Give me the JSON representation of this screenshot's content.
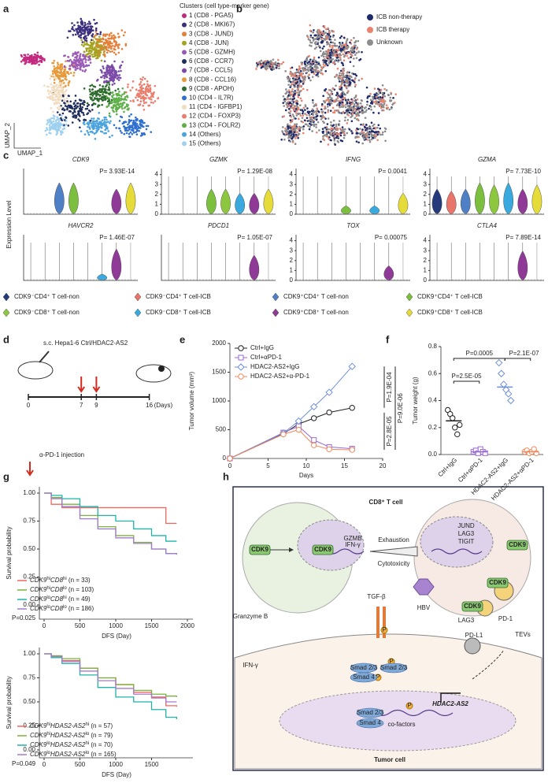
{
  "panel_labels": [
    "a",
    "b",
    "c",
    "d",
    "e",
    "f",
    "g",
    "h"
  ],
  "umap_clusters": {
    "title": "Clusters (cell type-marker gene)",
    "x_label": "UMAP_1",
    "y_label": "UMAP_2",
    "clusters": [
      {
        "label": "1 (CD8 - PGA5)",
        "color": "#c2297f"
      },
      {
        "label": "2 (CD8 - MKI67)",
        "color": "#3b2f7e"
      },
      {
        "label": "3 (CD8 - JUND)",
        "color": "#e5803a"
      },
      {
        "label": "4 (CD8 - JUN)",
        "color": "#a5a31f"
      },
      {
        "label": "5 (CD8 - GZMH)",
        "color": "#9b59b6"
      },
      {
        "label": "6 (CD8 - CCR7)",
        "color": "#1f2d5c"
      },
      {
        "label": "7 (CD8 - CCL5)",
        "color": "#7b4aa8"
      },
      {
        "label": "8 (CD8 - CCL16)",
        "color": "#e69a3c"
      },
      {
        "label": "9 (CD8 - APOH)",
        "color": "#2e6b2e"
      },
      {
        "label": "10 (CD4 - IL7R)",
        "color": "#2f6fd0"
      },
      {
        "label": "11 (CD4 - IGFBP1)",
        "color": "#f1dcc0"
      },
      {
        "label": "12 (CD4 - FOXP3)",
        "color": "#ea7e6e"
      },
      {
        "label": "13 (CD4 - FOLR2)",
        "color": "#5fb04a"
      },
      {
        "label": "14 (Others)",
        "color": "#4ba3dd"
      },
      {
        "label": "15 (Others)",
        "color": "#9fd0f0"
      }
    ]
  },
  "umap_therapy": {
    "groups": [
      {
        "label": "ICB non-therapy",
        "color": "#1d2a6b"
      },
      {
        "label": "ICB therapy",
        "color": "#e8826e"
      },
      {
        "label": "Unknown",
        "color": "#8c8c8c"
      }
    ]
  },
  "violins": {
    "y_label": "Expression Level",
    "panels": [
      {
        "gene": "CDK9",
        "p": "P= 3.93E-14"
      },
      {
        "gene": "GZMK",
        "p": "P= 1.29E-08",
        "yticks": [
          0,
          1,
          2,
          3,
          4
        ],
        "ylim": [
          0,
          4.6
        ]
      },
      {
        "gene": "IFNG",
        "p": "P= 0.0041",
        "yticks": [
          0,
          1,
          2,
          3,
          4
        ],
        "ylim": [
          0,
          4.6
        ]
      },
      {
        "gene": "GZMA",
        "p": "P= 7.73E-10",
        "yticks": [
          0,
          1,
          2,
          3,
          4
        ],
        "ylim": [
          0,
          4.6
        ]
      },
      {
        "gene": "HAVCR2",
        "p": "P= 1.46E-07"
      },
      {
        "gene": "PDCD1",
        "p": "P= 1.05E-07"
      },
      {
        "gene": "TOX",
        "p": "P= 0.00075",
        "yticks": [
          0,
          1,
          2,
          3,
          4
        ],
        "ylim": [
          0,
          4.6
        ]
      },
      {
        "gene": "CTLA4",
        "p": "P= 7.89E-14",
        "yticks": [
          0,
          1,
          2,
          3,
          4
        ],
        "ylim": [
          0,
          4.6
        ]
      }
    ],
    "groups": [
      {
        "label": "CDK9⁻CD4⁺ T cell-non",
        "color": "#253a7a"
      },
      {
        "label": "CDK9⁻CD4⁺ T cell-ICB",
        "color": "#e9746a"
      },
      {
        "label": "CDK9⁺CD4⁺ T cell-non",
        "color": "#4f7fc4"
      },
      {
        "label": "CDK9⁺CD4⁺ T cell-ICB",
        "color": "#7cbf3f"
      },
      {
        "label": "CDK9⁻CD8⁺ T cell-non",
        "color": "#8dc63f"
      },
      {
        "label": "CDK9⁻CD8⁺ T cell-ICB",
        "color": "#3aa9de"
      },
      {
        "label": "CDK9⁺CD8⁺ T cell-non",
        "color": "#8e3a96"
      },
      {
        "label": "CDK9⁺CD8⁺ T cell-ICB",
        "color": "#e5dc3a"
      }
    ]
  },
  "schedule": {
    "title": "s.c. Hepa1-6 Ctrl/HDAC2-AS2",
    "days": [
      0,
      7,
      9,
      16
    ],
    "unit": "(Days)",
    "injection": "α-PD-1 injection"
  },
  "chart_data": [
    {
      "type": "line",
      "x_label": "Days",
      "y_label": "Tumor volume (mm³)",
      "x": [
        0,
        7,
        9,
        11,
        13,
        16
      ],
      "xlim": [
        0,
        20
      ],
      "xticks": [
        0,
        5,
        10,
        15,
        20
      ],
      "ylim": [
        0,
        2000
      ],
      "yticks": [
        0,
        500,
        1000,
        1500,
        2000
      ],
      "series": [
        {
          "name": "Ctrl+IgG",
          "color": "#222222",
          "marker": "circle",
          "values": [
            0,
            430,
            600,
            700,
            800,
            880
          ]
        },
        {
          "name": "Ctrl+αPD-1",
          "color": "#9a6bd0",
          "marker": "square",
          "values": [
            0,
            450,
            560,
            320,
            200,
            170
          ]
        },
        {
          "name": "HDAC2-AS2+IgG",
          "color": "#6f8fd8",
          "marker": "diamond",
          "values": [
            0,
            440,
            650,
            900,
            1150,
            1600
          ]
        },
        {
          "name": "HDAC2-AS2+α-PD-1",
          "color": "#f08a5d",
          "marker": "circle",
          "values": [
            0,
            420,
            500,
            230,
            160,
            150
          ]
        }
      ],
      "annotations": [
        "P=1.9E-04",
        "P=9.0E-06",
        "P=2.8E-05"
      ]
    },
    {
      "type": "dot",
      "y_label": "Tumor weight (g)",
      "categories": [
        "Ctrl+IgG",
        "Ctrl+αPD-1",
        "HDAC2-AS2+IgG",
        "HDAC2-AS2+αPD-1"
      ],
      "values": [
        0.25,
        0.02,
        0.5,
        0.02
      ],
      "points": [
        [
          0.33,
          0.3,
          0.27,
          0.2,
          0.15,
          0.22
        ],
        [
          0.02,
          0.03,
          0.01,
          0.04,
          0.02,
          0.01
        ],
        [
          0.68,
          0.6,
          0.52,
          0.48,
          0.45,
          0.4
        ],
        [
          0.02,
          0.03,
          0.01,
          0.02,
          0.04,
          0.01
        ]
      ],
      "colors": [
        "#222222",
        "#9a6bd0",
        "#6f8fd8",
        "#f08a5d"
      ],
      "markers": [
        "circle",
        "square",
        "diamond",
        "circle"
      ],
      "ylim": [
        0,
        0.8
      ],
      "yticks": [
        {
          "value": 0,
          "label": "0.0"
        },
        {
          "value": 0.2,
          "label": "0.2"
        },
        {
          "value": 0.4,
          "label": "0.4"
        },
        {
          "value": 0.6,
          "label": "0.6"
        },
        {
          "value": 0.8,
          "label": "0.8"
        }
      ],
      "annotations": [
        "P=2.5E-05",
        "P=0.0005",
        "P=2.1E-07"
      ]
    },
    {
      "type": "step",
      "x_label": "DFS (Day)",
      "y_label": "Survival probability",
      "x": [
        0,
        100,
        250,
        500,
        750,
        1000,
        1250,
        1500,
        1700,
        1850
      ],
      "xlim": [
        0,
        2000
      ],
      "xticks": [
        0,
        500,
        1000,
        1500,
        2000
      ],
      "ylim": [
        0,
        1
      ],
      "yticks": [
        {
          "value": 0,
          "label": "0.00"
        },
        {
          "value": 0.25,
          "label": "0.25"
        },
        {
          "value": 0.5,
          "label": "0.50"
        },
        {
          "value": 0.75,
          "label": "0.75"
        },
        {
          "value": 1,
          "label": "1.00"
        }
      ],
      "series": [
        {
          "name": [
            [
              "CDK9",
              "i"
            ],
            [
              "hi",
              "s"
            ],
            [
              "CD8",
              "i"
            ],
            [
              "hi",
              "s"
            ],
            [
              " (n = 33)",
              ""
            ]
          ],
          "color": "#f0675e",
          "values": [
            1,
            0.9,
            0.87,
            0.87,
            0.87,
            0.87,
            0.87,
            0.87,
            0.73,
            0.73
          ]
        },
        {
          "name": [
            [
              "CDK9",
              "i"
            ],
            [
              "hi",
              "s"
            ],
            [
              "CD8",
              "i"
            ],
            [
              "lo",
              "s"
            ],
            [
              " (n = 103)",
              ""
            ]
          ],
          "color": "#7ab33e",
          "values": [
            1,
            0.96,
            0.9,
            0.8,
            0.7,
            0.62,
            0.56,
            0.5,
            0.46,
            0.45
          ]
        },
        {
          "name": [
            [
              "CDK9",
              "i"
            ],
            [
              "lo",
              "s"
            ],
            [
              "CD8",
              "i"
            ],
            [
              "hi",
              "s"
            ],
            [
              " (n = 49)",
              ""
            ]
          ],
          "color": "#1fb3aa",
          "values": [
            1,
            0.98,
            0.95,
            0.88,
            0.8,
            0.75,
            0.68,
            0.62,
            0.57,
            0.57
          ]
        },
        {
          "name": [
            [
              "CDK9",
              "i"
            ],
            [
              "lo",
              "s"
            ],
            [
              "CD8",
              "i"
            ],
            [
              "lo",
              "s"
            ],
            [
              " (n = 186)",
              ""
            ]
          ],
          "color": "#a37ad1",
          "values": [
            1,
            0.95,
            0.88,
            0.77,
            0.68,
            0.6,
            0.55,
            0.5,
            0.46,
            0.45
          ]
        }
      ],
      "annotation": "P=0.025"
    },
    {
      "type": "step",
      "x_label": "DFS (Day)",
      "y_label": "Survival probability",
      "x": [
        0,
        100,
        250,
        500,
        750,
        1000,
        1250,
        1500,
        1700,
        1850
      ],
      "xlim": [
        0,
        2000
      ],
      "xticks": [
        0,
        500,
        1000,
        1500
      ],
      "ylim": [
        0,
        1
      ],
      "yticks": [
        {
          "value": 0,
          "label": "0.00"
        },
        {
          "value": 0.25,
          "label": "0.25"
        },
        {
          "value": 0.5,
          "label": "0.50"
        },
        {
          "value": 0.75,
          "label": "0.75"
        },
        {
          "value": 1,
          "label": "1.00"
        }
      ],
      "series": [
        {
          "name": [
            [
              "CDK9",
              "i"
            ],
            [
              "hi",
              "s"
            ],
            [
              "HDAS2-AS2",
              "i"
            ],
            [
              "hi",
              "s"
            ],
            [
              " (n = 57)",
              ""
            ]
          ],
          "color": "#f0675e",
          "values": [
            1,
            0.97,
            0.93,
            0.85,
            0.75,
            0.68,
            0.6,
            0.55,
            0.46,
            0.45
          ]
        },
        {
          "name": [
            [
              "CDK9",
              "i"
            ],
            [
              "hi",
              "s"
            ],
            [
              "HDAS2-AS2",
              "i"
            ],
            [
              "lo",
              "s"
            ],
            [
              " (n = 79)",
              ""
            ]
          ],
          "color": "#7ab33e",
          "values": [
            1,
            0.98,
            0.95,
            0.85,
            0.75,
            0.68,
            0.62,
            0.58,
            0.56,
            0.55
          ]
        },
        {
          "name": [
            [
              "CDK9",
              "i"
            ],
            [
              "lo",
              "s"
            ],
            [
              "HDAS2-AS2",
              "i"
            ],
            [
              "hi",
              "s"
            ],
            [
              " (n = 70)",
              ""
            ]
          ],
          "color": "#1fb3aa",
          "values": [
            1,
            0.96,
            0.9,
            0.78,
            0.65,
            0.55,
            0.5,
            0.42,
            0.34,
            0.32
          ]
        },
        {
          "name": [
            [
              "CDK9",
              "i"
            ],
            [
              "lo",
              "s"
            ],
            [
              "HDAS2-AS2",
              "i"
            ],
            [
              "lo",
              "s"
            ],
            [
              " (n = 165)",
              ""
            ]
          ],
          "color": "#a37ad1",
          "values": [
            1,
            0.97,
            0.92,
            0.82,
            0.72,
            0.64,
            0.58,
            0.54,
            0.5,
            0.5
          ]
        }
      ],
      "annotation": "P=0.049"
    }
  ],
  "diagram": {
    "cd8": "CD8⁺ T cell",
    "cdk9": "CDK9",
    "gzmb": "GZMB",
    "ifng": "IFN-γ",
    "exhaustion": "Exhaustion",
    "cytotoxicity": "Cytotoxicity",
    "jund": "JUND",
    "lag3": "LAG3",
    "tigit": "TIGIT",
    "pd1": "PD-1",
    "tevs": "TEVs",
    "tgfb": "TGF-β",
    "hbv": "HBV",
    "granzyme": "Granzyme B",
    "pdl1": "PD-L1",
    "p": "P",
    "smad23": "Smad 2/3",
    "smad4": "Smad 4",
    "cofactors": "co-factors",
    "lnc": "HDAC2-AS2",
    "tumor": "Tumor cell"
  }
}
